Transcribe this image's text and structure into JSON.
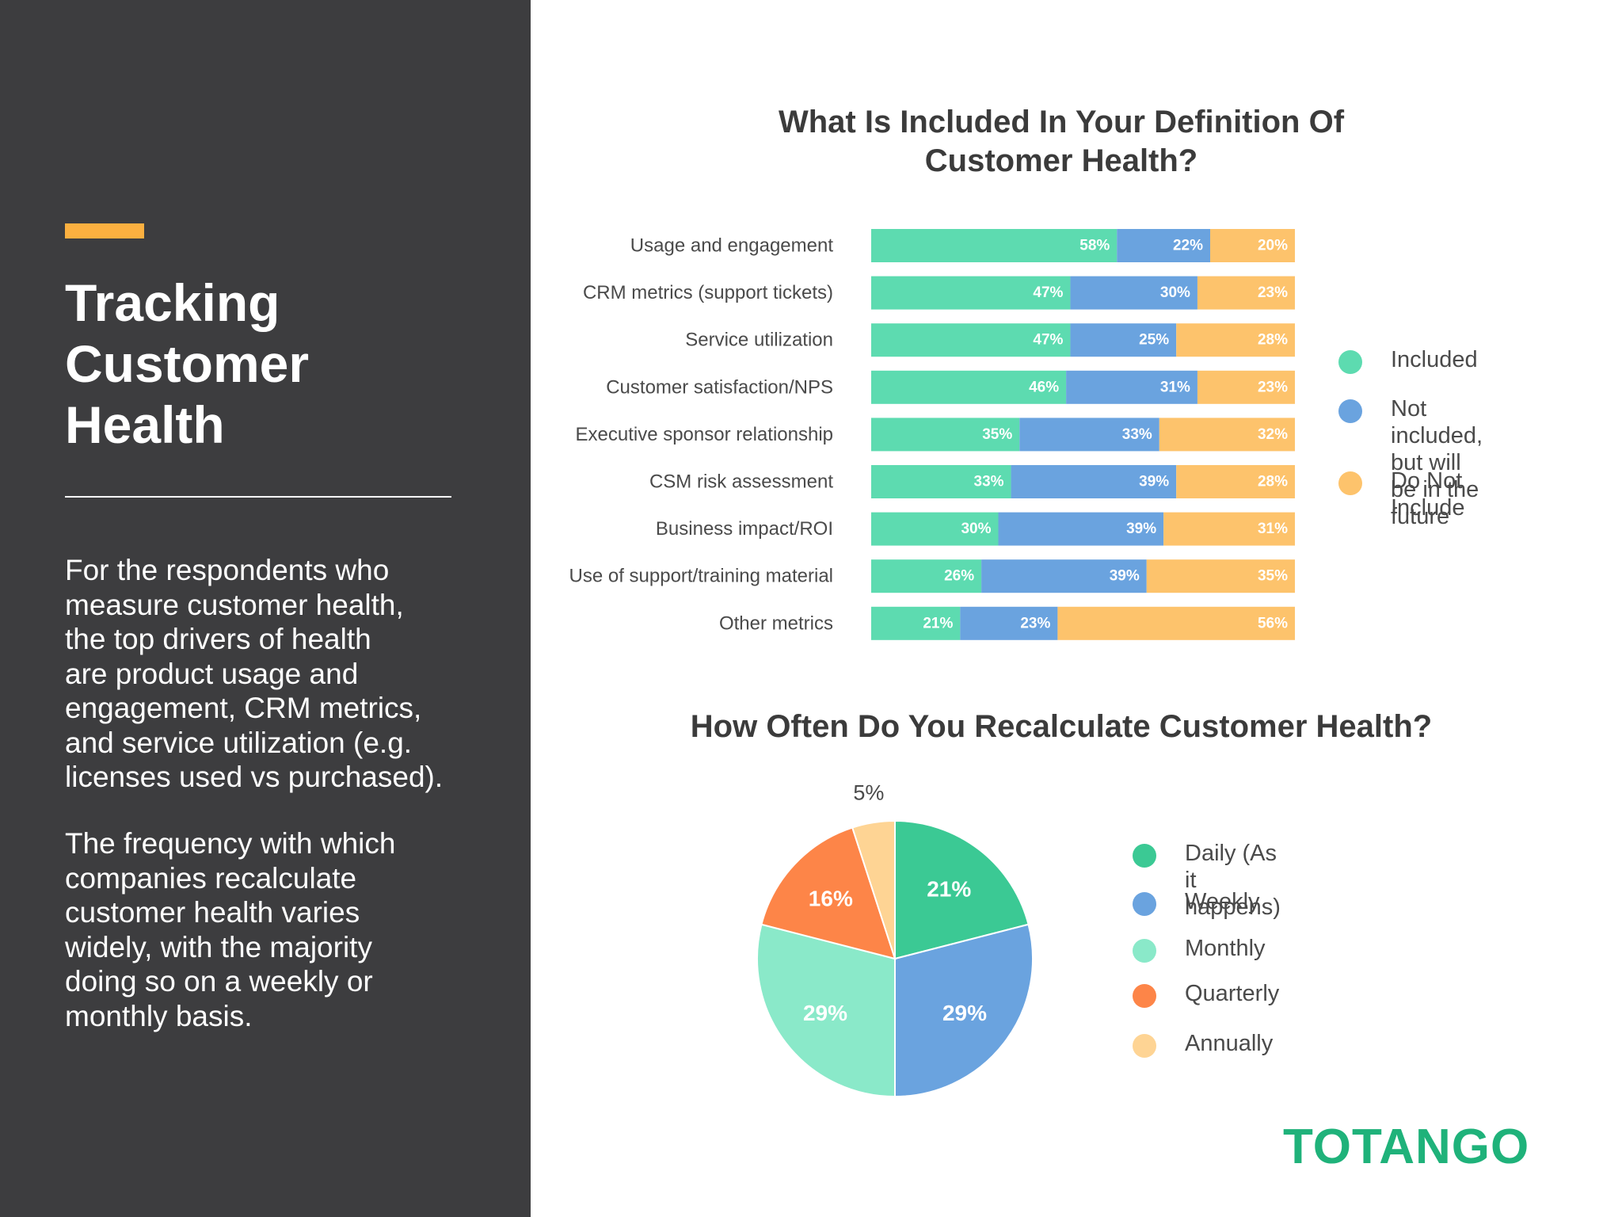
{
  "panel": {
    "title_lines": [
      "Tracking",
      "Customer",
      "Health"
    ],
    "paragraph_1": "For the respondents who\nmeasure customer health,\nthe top drivers of health\nare product usage and\nengagement, CRM metrics,\nand service utilization (e.g.\nlicenses used vs purchased).",
    "paragraph_2": "The frequency with which\ncompanies recalculate\ncustomer health varies\nwidely, with the majority\ndoing so on a weekly or\nmonthly basis."
  },
  "brand": {
    "name": "TOTANGO",
    "color": "#1fb27a"
  },
  "colors": {
    "panel_bg": "#3d3d3f",
    "accent": "#fbb040",
    "included": "#5ddbb0",
    "not_included": "#6aa3df",
    "do_not_include": "#fdc36c",
    "pie_daily": "#3bc994",
    "pie_weekly": "#6aa3df",
    "pie_monthly": "#8ae9c9",
    "pie_quarterly": "#fd8548",
    "pie_annually": "#fed494"
  },
  "chart_data": [
    {
      "type": "bar",
      "orientation": "horizontal-stacked-100",
      "title": "What Is Included In Your Definition Of Customer Health?",
      "categories": [
        "Usage and engagement",
        "CRM metrics (support tickets)",
        "Service utilization",
        "Customer satisfaction/NPS",
        "Executive sponsor relationship",
        "CSM risk assessment",
        "Business impact/ROI",
        "Use of support/training material",
        "Other metrics"
      ],
      "series": [
        {
          "name": "Included",
          "color": "#5ddbb0",
          "values": [
            58,
            47,
            47,
            46,
            35,
            33,
            30,
            26,
            21
          ]
        },
        {
          "name": "Not included, but will\nbe in the future",
          "color": "#6aa3df",
          "values": [
            22,
            30,
            25,
            31,
            33,
            39,
            39,
            39,
            23
          ]
        },
        {
          "name": "Do Not Include",
          "color": "#fdc36c",
          "values": [
            20,
            23,
            28,
            23,
            32,
            28,
            31,
            35,
            56
          ]
        }
      ],
      "value_suffix": "%",
      "legend_position": "right"
    },
    {
      "type": "pie",
      "title": "How Often Do You Recalculate Customer Health?",
      "slices": [
        {
          "label": "Daily (As it happens)",
          "value": 21,
          "color": "#3bc994"
        },
        {
          "label": "Weekly",
          "value": 29,
          "color": "#6aa3df"
        },
        {
          "label": "Monthly",
          "value": 29,
          "color": "#8ae9c9"
        },
        {
          "label": "Quarterly",
          "value": 16,
          "color": "#fd8548"
        },
        {
          "label": "Annually",
          "value": 5,
          "color": "#fed494"
        }
      ],
      "value_suffix": "%",
      "legend_position": "right"
    }
  ]
}
